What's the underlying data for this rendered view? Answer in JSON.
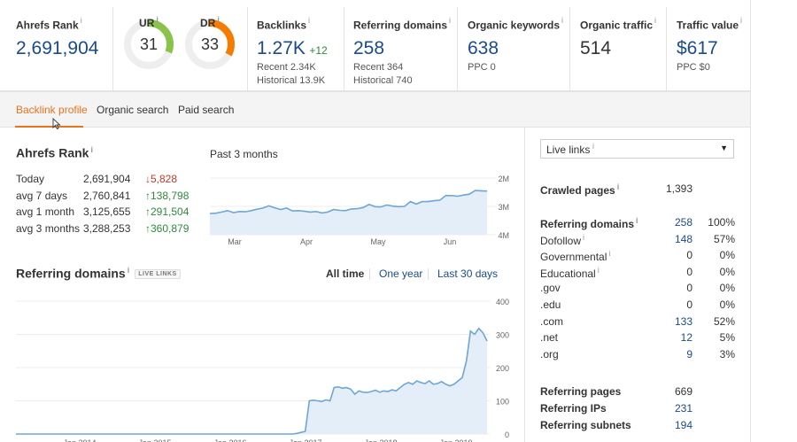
{
  "metrics": {
    "ahrefs_rank": {
      "label": "Ahrefs Rank",
      "value": "2,691,904"
    },
    "ur": {
      "label": "UR",
      "value": "31",
      "score": 31,
      "color": "#8bc34a"
    },
    "dr": {
      "label": "DR",
      "value": "33",
      "score": 33,
      "color": "#f57c00"
    },
    "backlinks": {
      "label": "Backlinks",
      "value": "1.27K",
      "delta": "+12",
      "recent": "Recent 2.34K",
      "historical": "Historical 13.9K"
    },
    "referring_domains": {
      "label": "Referring domains",
      "value": "258",
      "recent": "Recent 364",
      "historical": "Historical 740"
    },
    "organic_keywords": {
      "label": "Organic keywords",
      "value": "638",
      "sub": "PPC 0"
    },
    "organic_traffic": {
      "label": "Organic traffic",
      "value": "514"
    },
    "traffic_value": {
      "label": "Traffic value",
      "value": "$617",
      "sub": "PPC $0"
    }
  },
  "tabs": [
    "Backlink profile",
    "Organic search",
    "Paid search"
  ],
  "rank_section": {
    "title": "Ahrefs Rank",
    "period": "Past 3 months",
    "rows": [
      {
        "label": "Today",
        "value": "2,691,904",
        "change": "↓5,828",
        "dir": "down"
      },
      {
        "label": "avg 7 days",
        "value": "2,760,841",
        "change": "↑138,798",
        "dir": "up"
      },
      {
        "label": "avg 1 month",
        "value": "3,125,655",
        "change": "↑291,504",
        "dir": "up"
      },
      {
        "label": "avg 3 months",
        "value": "3,288,253",
        "change": "↑360,879",
        "dir": "up"
      }
    ]
  },
  "refdomains_section": {
    "title": "Referring domains",
    "badge": "LIVE LINKS",
    "ranges": [
      "All time",
      "One year",
      "Last 30 days"
    ]
  },
  "sidebar": {
    "dropdown": "Live links",
    "crawled": {
      "label": "Crawled pages",
      "value": "1,393"
    },
    "refdomains": [
      {
        "label": "Referring domains",
        "value": "258",
        "pct": "100%",
        "bold": true,
        "link": true,
        "info": true
      },
      {
        "label": "Dofollow",
        "value": "148",
        "pct": "57%",
        "link": true,
        "info": true
      },
      {
        "label": "Governmental",
        "value": "0",
        "pct": "0%",
        "info": true
      },
      {
        "label": "Educational",
        "value": "0",
        "pct": "0%",
        "info": true
      },
      {
        "label": ".gov",
        "value": "0",
        "pct": "0%"
      },
      {
        "label": ".edu",
        "value": "0",
        "pct": "0%"
      },
      {
        "label": ".com",
        "value": "133",
        "pct": "52%",
        "link": true
      },
      {
        "label": ".net",
        "value": "12",
        "pct": "5%",
        "link": true
      },
      {
        "label": ".org",
        "value": "9",
        "pct": "3%",
        "link": true
      }
    ],
    "bottom": [
      {
        "label": "Referring pages",
        "value": "669"
      },
      {
        "label": "Referring IPs",
        "value": "231",
        "link": true
      },
      {
        "label": "Referring subnets",
        "value": "194",
        "link": true
      }
    ]
  },
  "chart_data": [
    {
      "type": "area",
      "title": "Past 3 months",
      "x_ticks": [
        "Mar",
        "Apr",
        "May",
        "Jun"
      ],
      "y_ticks": [
        "2M",
        "3M",
        "4M"
      ],
      "ylim": [
        2000000,
        4000000
      ],
      "y_inverted": true,
      "color": "#6ea6d6",
      "fill": "#e3eef8",
      "values": [
        3250000,
        3240000,
        3200000,
        3150000,
        3220000,
        3180000,
        3190000,
        3150000,
        3100000,
        3060000,
        2980000,
        3050000,
        3110000,
        3060000,
        3160000,
        3150000,
        3170000,
        3200000,
        3180000,
        3230000,
        3200000,
        3110000,
        3140000,
        3150000,
        3090000,
        3080000,
        3040000,
        2930000,
        3010000,
        3020000,
        2950000,
        2990000,
        3010000,
        3000000,
        2830000,
        2920000,
        2830000,
        2830000,
        2800000,
        2780000,
        2620000,
        2620000,
        2640000,
        2600000,
        2570000,
        2440000,
        2450000,
        2460000
      ]
    },
    {
      "type": "area",
      "title": "Referring domains",
      "x_ticks": [
        "Jan 2014",
        "Jan 2015",
        "Jan 2016",
        "Jan 2017",
        "Jan 2018",
        "Jan 2019"
      ],
      "y_ticks": [
        "0",
        "100",
        "200",
        "300",
        "400"
      ],
      "ylim": [
        0,
        400
      ],
      "color": "#6ea6d6",
      "fill": "#e3eef8",
      "values": [
        0,
        0,
        0,
        0,
        0,
        0,
        0,
        0,
        0,
        0,
        0,
        0,
        0,
        0,
        0,
        0,
        0,
        0,
        0,
        0,
        0,
        0,
        0,
        0,
        0,
        0,
        0,
        0,
        0,
        0,
        0,
        0,
        0,
        0,
        0,
        0,
        0,
        0,
        0,
        0,
        0,
        0,
        0,
        0,
        0,
        0,
        0,
        0,
        0,
        0,
        0,
        0,
        0,
        0,
        0,
        0,
        0,
        0,
        0,
        0,
        0,
        0,
        0,
        0,
        0,
        0,
        0,
        0,
        2,
        5,
        8,
        100,
        102,
        100,
        98,
        103,
        100,
        140,
        142,
        138,
        140,
        135,
        120,
        130,
        126,
        125,
        128,
        132,
        126,
        130,
        128,
        133,
        130,
        140,
        150,
        155,
        150,
        160,
        155,
        152,
        160,
        150,
        152,
        158,
        150,
        145,
        150,
        160,
        170,
        220,
        310,
        300,
        318,
        305,
        280
      ]
    }
  ]
}
